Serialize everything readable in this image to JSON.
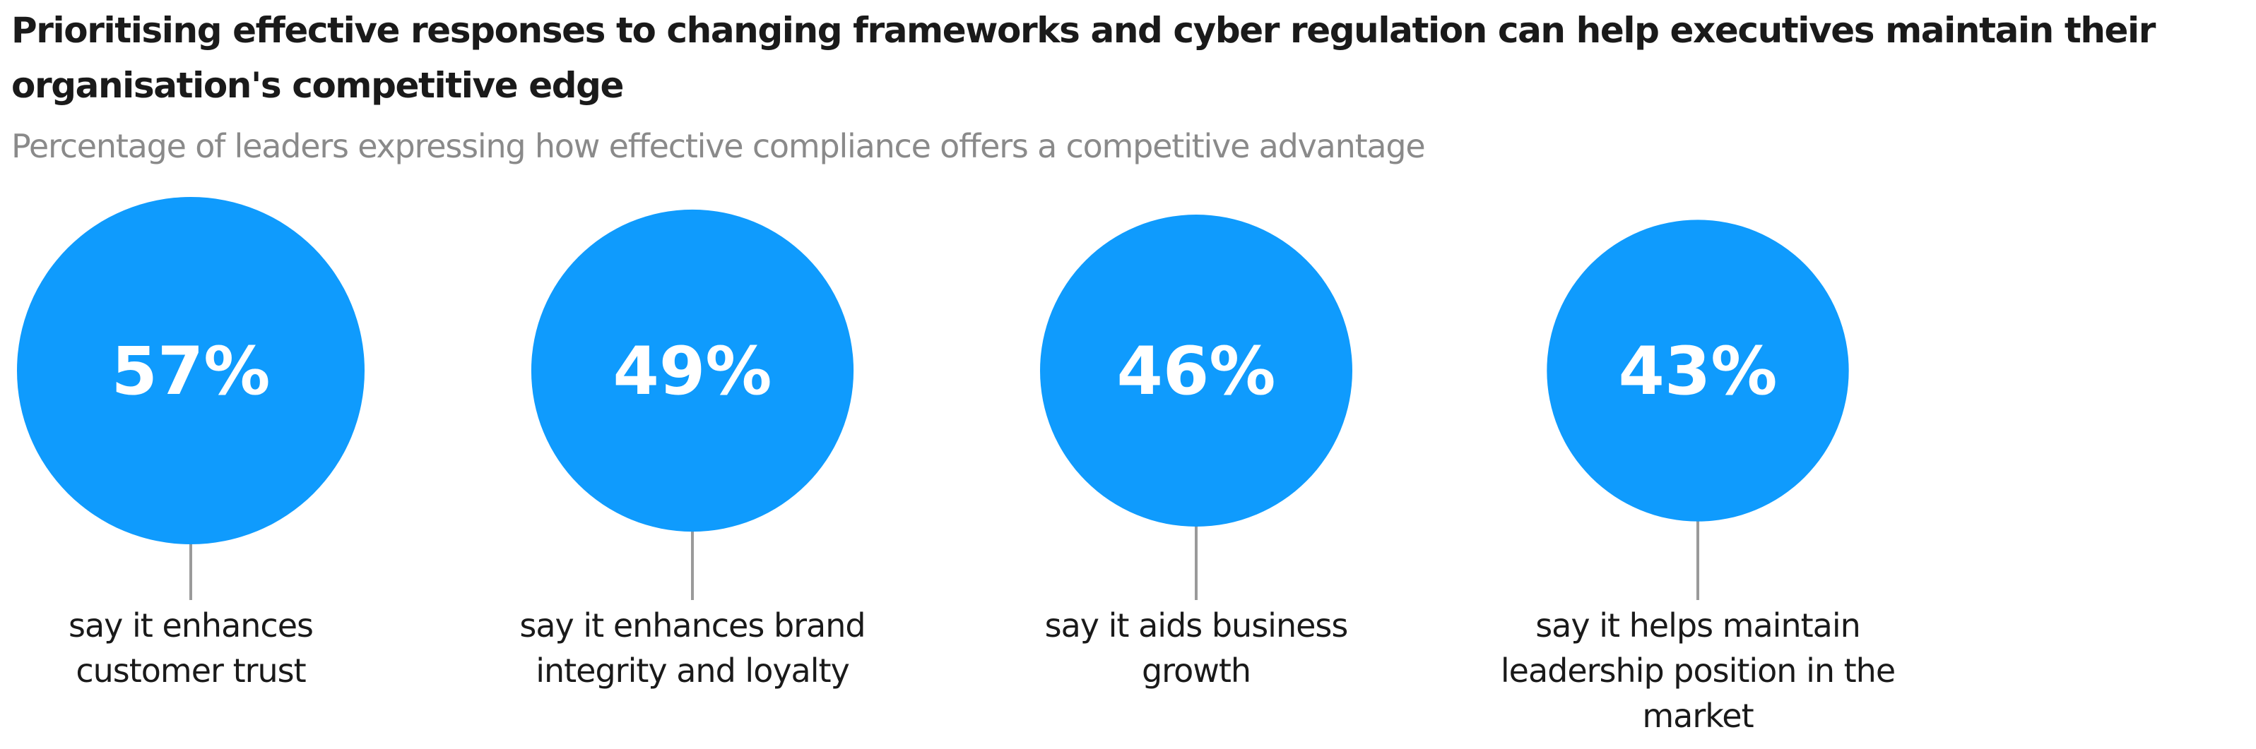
{
  "title": "Prioritising effective responses to changing frameworks and cyber regulation can help executives maintain their organisation's competitive edge",
  "subtitle": "Percentage of leaders expressing how effective compliance offers a competitive advantage",
  "colors": {
    "bubble": "#0f9bfd",
    "stem": "#9a9a9a"
  },
  "chart_data": {
    "type": "bubble",
    "unit": "%",
    "categories": [
      [
        "say it enhances",
        "customer trust"
      ],
      [
        "say it enhances brand",
        "integrity and loyalty"
      ],
      [
        "say it aids business",
        "growth"
      ],
      [
        "say it helps maintain",
        "leadership position in the",
        "market"
      ]
    ],
    "values": [
      57,
      49,
      46,
      43
    ],
    "value_labels": [
      "57%",
      "49%",
      "46%",
      "43%"
    ]
  }
}
